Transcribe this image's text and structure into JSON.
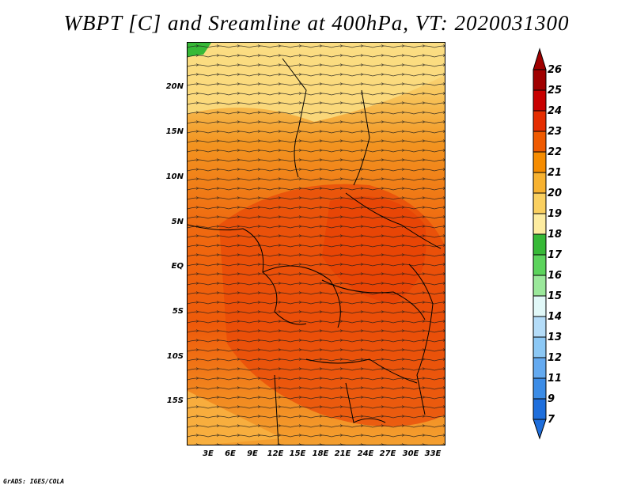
{
  "title": "WBPT [C] and Sreamline at 400hPa, VT: 2020031300",
  "credit": "GrADS: IGES/COLA",
  "map": {
    "lat_labels": [
      "20N",
      "15N",
      "10N",
      "5N",
      "EQ",
      "5S",
      "10S",
      "15S"
    ],
    "lon_labels": [
      "3E",
      "6E",
      "9E",
      "12E",
      "15E",
      "18E",
      "21E",
      "24E",
      "27E",
      "30E",
      "33E"
    ]
  },
  "colorbar": {
    "labels": [
      "26",
      "25",
      "24",
      "23",
      "22",
      "21",
      "20",
      "19",
      "18",
      "17",
      "16",
      "15",
      "14",
      "13",
      "12",
      "11",
      "9",
      "7"
    ],
    "colors": [
      "#a00000",
      "#c80000",
      "#e52d00",
      "#ef5a00",
      "#f58c00",
      "#f7b230",
      "#fad060",
      "#fdeca0",
      "#37b937",
      "#5cd35c",
      "#9be89b",
      "#e1f8f8",
      "#b4dcf8",
      "#8cc8f5",
      "#64aaf0",
      "#3c8ce6",
      "#1e6edc"
    ],
    "top_arrow_color": "#a00000",
    "bottom_arrow_color": "#1e6edc"
  }
}
